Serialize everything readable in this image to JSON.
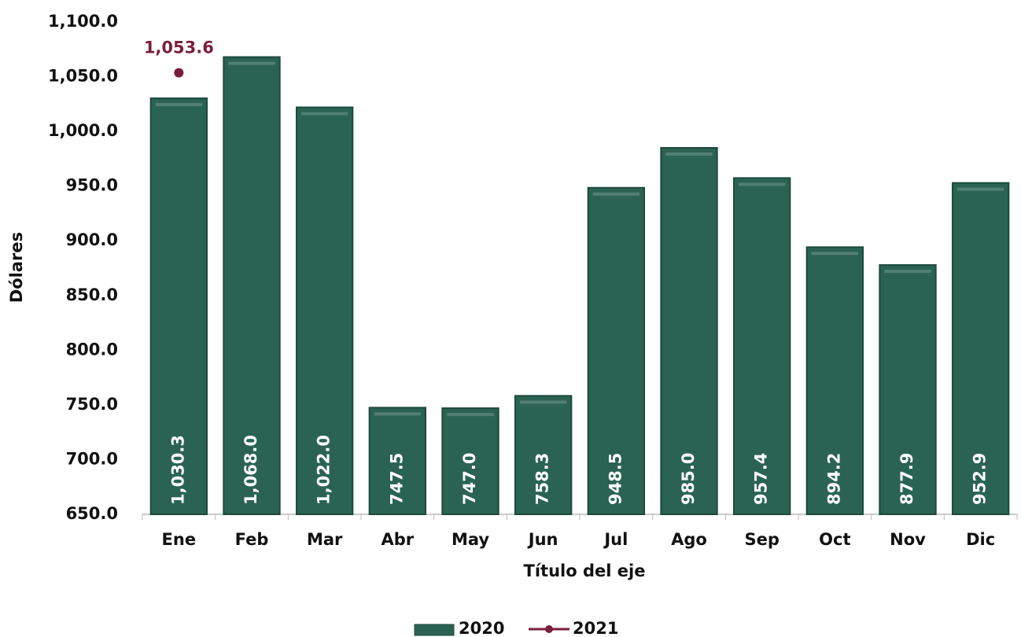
{
  "chart_data": {
    "type": "bar",
    "y_label": "Dólares",
    "x_label": "Título del eje",
    "categories": [
      "Ene",
      "Feb",
      "Mar",
      "Abr",
      "May",
      "Jun",
      "Jul",
      "Ago",
      "Sep",
      "Oct",
      "Nov",
      "Dic"
    ],
    "series": [
      {
        "name": "2020",
        "type": "bar",
        "color": "#2b6352",
        "values": [
          1030.3,
          1068.0,
          1022.0,
          747.5,
          747.0,
          758.3,
          948.5,
          985.0,
          957.4,
          894.2,
          877.9,
          952.9
        ],
        "value_labels": [
          "1,030.3",
          "1,068.0",
          "1,022.0",
          "747.5",
          "747.0",
          "758.3",
          "948.5",
          "985.0",
          "957.4",
          "894.2",
          "877.9",
          "952.9"
        ]
      },
      {
        "name": "2021",
        "type": "line",
        "color": "#7b1e3e",
        "values": [
          1053.6,
          null,
          null,
          null,
          null,
          null,
          null,
          null,
          null,
          null,
          null,
          null
        ],
        "value_labels": [
          "1,053.6",
          null,
          null,
          null,
          null,
          null,
          null,
          null,
          null,
          null,
          null,
          null
        ]
      }
    ],
    "ylim": [
      650,
      1100
    ],
    "yticks": [
      {
        "value": 650,
        "label": "650.0"
      },
      {
        "value": 700,
        "label": "700.0"
      },
      {
        "value": 750,
        "label": "750.0"
      },
      {
        "value": 800,
        "label": "800.0"
      },
      {
        "value": 850,
        "label": "850.0"
      },
      {
        "value": 900,
        "label": "900.0"
      },
      {
        "value": 950,
        "label": "950.0"
      },
      {
        "value": 1000,
        "label": "1,000.0"
      },
      {
        "value": 1050,
        "label": "1,050.0"
      },
      {
        "value": 1100,
        "label": "1,100.0"
      }
    ],
    "grid": false
  }
}
